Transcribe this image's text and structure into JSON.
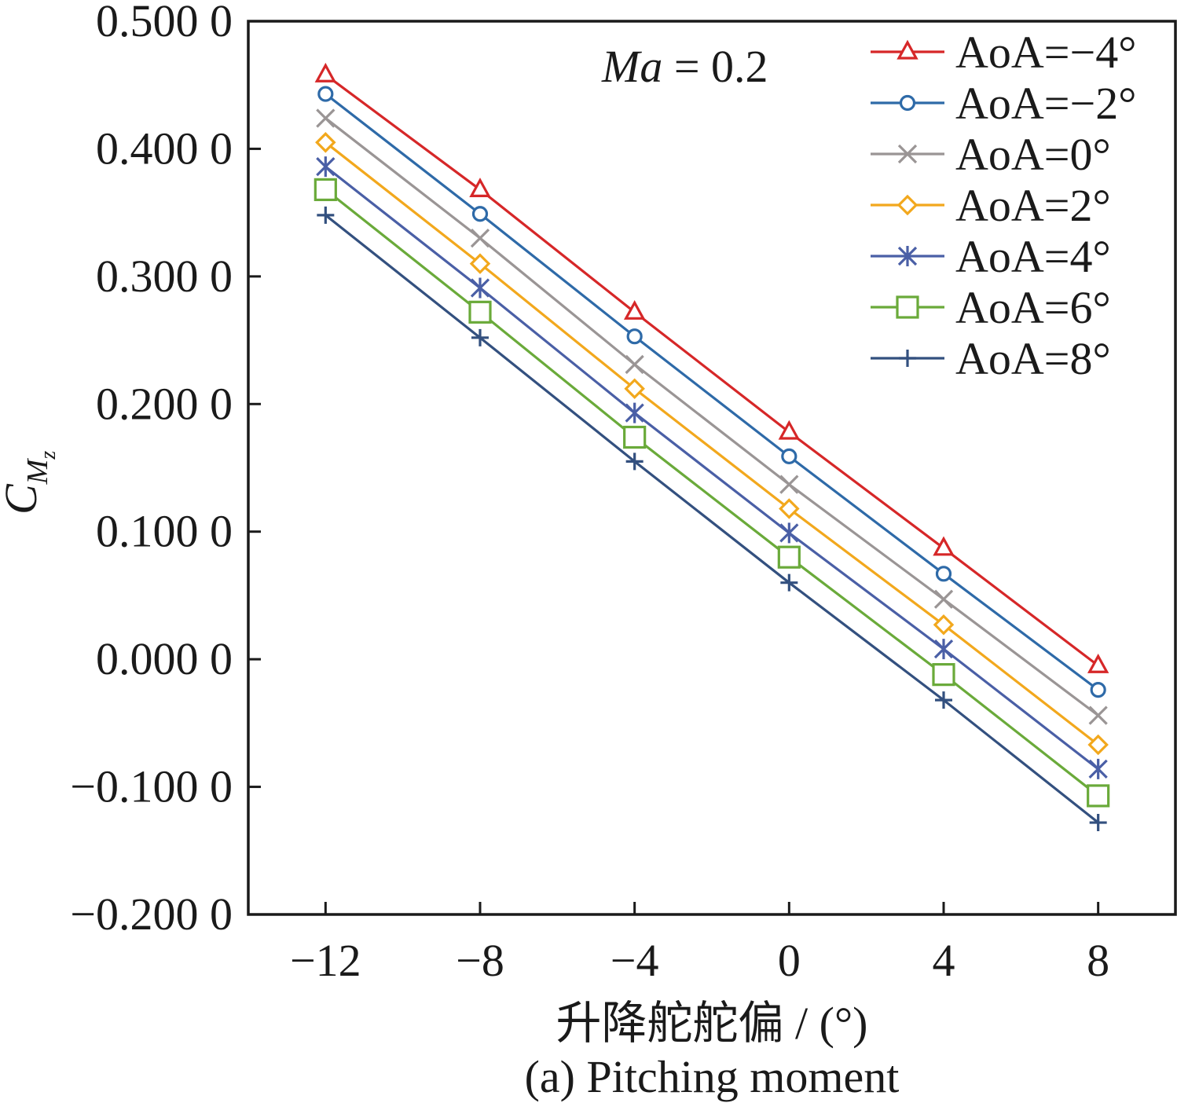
{
  "chart_data": {
    "type": "line",
    "title": "",
    "caption": "(a) Pitching moment",
    "xlabel": "升降舵舵偏 / (°)",
    "ylabel_main": "C",
    "ylabel_sub": "M",
    "ylabel_subsub": "z",
    "annotation": {
      "italic": "Ma",
      "rest": " = 0.2"
    },
    "x": [
      -12,
      -8,
      -4,
      0,
      4,
      8
    ],
    "x_tick_labels": [
      "−12",
      "−8",
      "−4",
      "0",
      "4",
      "8"
    ],
    "xlim": [
      -14,
      10
    ],
    "ylim": [
      -0.2,
      0.5
    ],
    "y_ticks": [
      -0.2,
      -0.1,
      0.0,
      0.1,
      0.2,
      0.3,
      0.4,
      0.5
    ],
    "y_tick_labels": [
      "−0.200 0",
      "−0.100 0",
      "0.000 0",
      "0.100 0",
      "0.200 0",
      "0.300 0",
      "0.400 0",
      "0.500 0"
    ],
    "grid": false,
    "legend_position": "top-right",
    "series": [
      {
        "name": "AoA=−4°",
        "marker": "triangle",
        "color": "#d62728",
        "values": [
          0.458,
          0.368,
          0.272,
          0.178,
          0.087,
          -0.005
        ]
      },
      {
        "name": "AoA=−2°",
        "marker": "circle",
        "color": "#2e6aa8",
        "values": [
          0.443,
          0.349,
          0.253,
          0.159,
          0.067,
          -0.024
        ]
      },
      {
        "name": "AoA=0°",
        "marker": "x",
        "color": "#9a9595",
        "values": [
          0.424,
          0.33,
          0.231,
          0.137,
          0.047,
          -0.044
        ]
      },
      {
        "name": "AoA=2°",
        "marker": "diamond",
        "color": "#f2a81d",
        "values": [
          0.405,
          0.31,
          0.212,
          0.118,
          0.027,
          -0.067
        ]
      },
      {
        "name": "AoA=4°",
        "marker": "asterisk",
        "color": "#4a5fa6",
        "values": [
          0.386,
          0.291,
          0.193,
          0.099,
          0.008,
          -0.086
        ]
      },
      {
        "name": "AoA=6°",
        "marker": "square",
        "color": "#6aaa3a",
        "values": [
          0.368,
          0.272,
          0.174,
          0.08,
          -0.012,
          -0.107
        ]
      },
      {
        "name": "AoA=8°",
        "marker": "plus",
        "color": "#33507f",
        "values": [
          0.348,
          0.252,
          0.155,
          0.06,
          -0.032,
          -0.128
        ]
      }
    ]
  }
}
